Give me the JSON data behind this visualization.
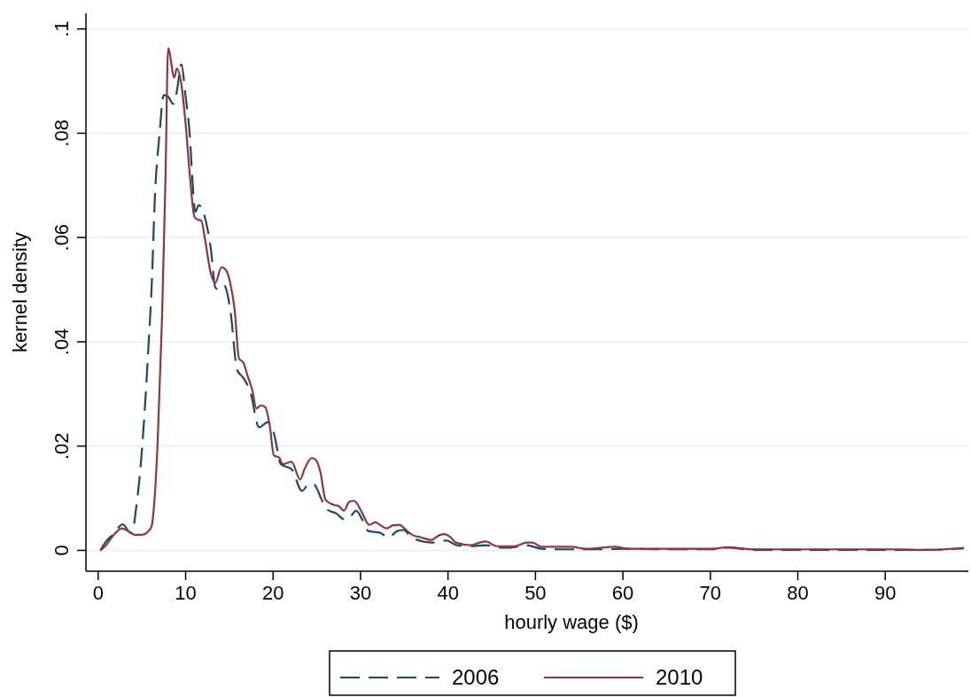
{
  "chart_data": {
    "type": "line",
    "xlabel": "hourly wage ($)",
    "ylabel": "kernel density",
    "xlim": [
      -1.4,
      99.5
    ],
    "ylim": [
      -0.004,
      0.103
    ],
    "xticks": [
      0,
      10,
      20,
      30,
      40,
      50,
      60,
      70,
      80,
      90
    ],
    "yticks": [
      {
        "value": 0,
        "label": "0"
      },
      {
        "value": 0.02,
        "label": ".02"
      },
      {
        "value": 0.04,
        "label": ".04"
      },
      {
        "value": 0.06,
        "label": ".06"
      },
      {
        "value": 0.08,
        "label": ".08"
      },
      {
        "value": 0.1,
        "label": ".1"
      }
    ],
    "grid": "y",
    "legend": "bottom",
    "marker": "none",
    "series": [
      {
        "name": "2006",
        "color": "#1a476f",
        "line_style": "dashed",
        "x": [
          0.25,
          0.9,
          1.8,
          2.8,
          3.7,
          4.0,
          4.3,
          4.8,
          5.3,
          5.8,
          6.1,
          6.5,
          7.0,
          7.5,
          8.0,
          8.6,
          9.0,
          9.5,
          10.0,
          10.5,
          10.8,
          11.1,
          11.5,
          12.3,
          12.9,
          13.4,
          13.8,
          14.4,
          15.1,
          15.9,
          16.6,
          17.4,
          18.4,
          19.4,
          20.1,
          20.9,
          22.1,
          23.3,
          24.1,
          24.6,
          25.7,
          26.2,
          27.2,
          28.2,
          28.9,
          29.5,
          30.2,
          30.9,
          32.2,
          33.2,
          34.2,
          34.9,
          35.9,
          38.3,
          39.8,
          41.0,
          42.6,
          44.3,
          46.0,
          47.0,
          49.0,
          50.7,
          54.1,
          57.4,
          60,
          65,
          70,
          72,
          75,
          80,
          85,
          90,
          95,
          99
        ],
        "values": [
          0,
          0.0017,
          0.0032,
          0.005,
          0.0034,
          0.004,
          0.0076,
          0.0151,
          0.0263,
          0.0406,
          0.05,
          0.0683,
          0.0796,
          0.0873,
          0.087,
          0.0856,
          0.0881,
          0.0932,
          0.087,
          0.079,
          0.0705,
          0.0649,
          0.0662,
          0.0632,
          0.0576,
          0.0504,
          0.05,
          0.0508,
          0.0462,
          0.0346,
          0.0331,
          0.0304,
          0.0236,
          0.0246,
          0.0224,
          0.0165,
          0.0156,
          0.0114,
          0.0127,
          0.0127,
          0.0092,
          0.0078,
          0.0071,
          0.0059,
          0.0066,
          0.0076,
          0.0059,
          0.0037,
          0.0034,
          0.0025,
          0.0037,
          0.0039,
          0.0024,
          0.0015,
          0.0019,
          0.001,
          0.0008,
          0.001,
          0.0005,
          0.0005,
          0.001,
          0.0003,
          0.0002,
          0.0002,
          0.0003,
          0.0002,
          0.0002,
          0.0005,
          0.0001,
          0.0001,
          0.0001,
          0.0001,
          0.0001,
          0.0004
        ]
      },
      {
        "name": "2010",
        "color": "#90353b",
        "line_style": "solid",
        "x": [
          0.25,
          0.75,
          1.8,
          2.7,
          3.5,
          4.2,
          5.0,
          5.7,
          6.1,
          6.4,
          6.8,
          7.3,
          7.7,
          8.0,
          8.7,
          9.0,
          9.5,
          10.0,
          10.5,
          11.0,
          11.3,
          11.8,
          12.2,
          12.9,
          13.4,
          14.1,
          14.6,
          15.1,
          15.6,
          16.1,
          16.6,
          17.1,
          17.6,
          18.1,
          18.6,
          19.1,
          19.6,
          20.1,
          20.7,
          21.1,
          22.1,
          23.1,
          23.6,
          24.4,
          24.8,
          25.4,
          26.0,
          27.0,
          27.5,
          28.1,
          28.7,
          29.2,
          29.5,
          30.2,
          31.0,
          31.7,
          32.2,
          33.0,
          33.7,
          34.5,
          35.0,
          36.0,
          36.9,
          38.1,
          39.0,
          39.6,
          40.3,
          40.9,
          42.6,
          43.6,
          44.3,
          45.6,
          47.6,
          49.0,
          49.7,
          50.6,
          52.4,
          54.1,
          55.7,
          59.1,
          60.7,
          65,
          70,
          72,
          75,
          80,
          85,
          90,
          95,
          99
        ],
        "values": [
          0,
          0.0007,
          0.003,
          0.0042,
          0.0036,
          0.003,
          0.003,
          0.0036,
          0.0046,
          0.0088,
          0.0207,
          0.0445,
          0.0716,
          0.0963,
          0.0907,
          0.0924,
          0.0895,
          0.0818,
          0.0716,
          0.064,
          0.0635,
          0.0632,
          0.0598,
          0.053,
          0.0513,
          0.0543,
          0.0538,
          0.0513,
          0.0462,
          0.0368,
          0.036,
          0.0334,
          0.0309,
          0.0272,
          0.0278,
          0.0275,
          0.0241,
          0.0182,
          0.0178,
          0.0165,
          0.017,
          0.0136,
          0.0156,
          0.0177,
          0.0175,
          0.0151,
          0.0097,
          0.0087,
          0.0085,
          0.0076,
          0.0093,
          0.0095,
          0.0092,
          0.0071,
          0.0049,
          0.0054,
          0.0049,
          0.0042,
          0.0048,
          0.0049,
          0.0042,
          0.0029,
          0.0025,
          0.002,
          0.0029,
          0.0031,
          0.0025,
          0.0015,
          0.001,
          0.0015,
          0.0017,
          0.0008,
          0.0008,
          0.0015,
          0.0015,
          0.0007,
          0.0007,
          0.0007,
          0.0003,
          0.0007,
          0.0003,
          0.0003,
          0.0003,
          0.0006,
          0.0002,
          0.0002,
          0.0002,
          0.0002,
          0.0001,
          0.0005
        ]
      }
    ]
  }
}
